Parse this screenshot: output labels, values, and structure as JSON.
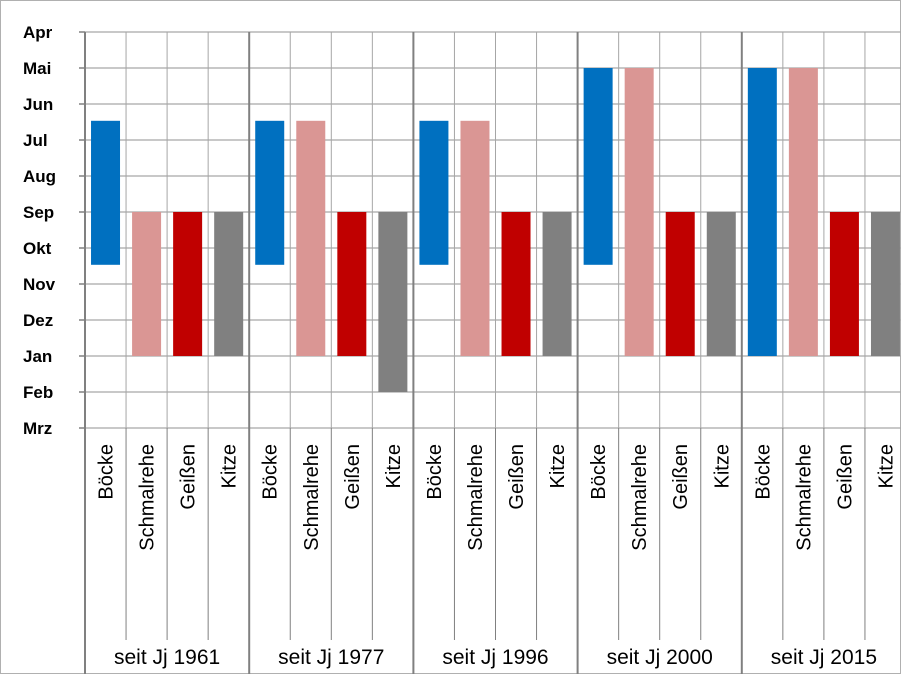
{
  "chart_data": {
    "type": "bar",
    "subtype": "floating-range",
    "title": "",
    "xlabel": "",
    "ylabel": "",
    "y_inverted": true,
    "y_ticks": [
      "Apr",
      "Mai",
      "Jun",
      "Jul",
      "Aug",
      "Sep",
      "Okt",
      "Nov",
      "Dez",
      "Jan",
      "Feb",
      "Mrz"
    ],
    "categories": [
      "Böcke",
      "Schmalrehe",
      "Geißen",
      "Kitze"
    ],
    "colors": {
      "Böcke": "#0070C0",
      "Schmalrehe": "#DA9694",
      "Geißen": "#C00000",
      "Kitze": "#808080"
    },
    "groups": [
      {
        "label": "seit Jj 1961",
        "ranges": [
          [
            "Jun 15",
            "Okt 15"
          ],
          [
            "Sep",
            "Jan"
          ],
          [
            "Sep",
            "Jan"
          ],
          [
            "Sep",
            "Jan"
          ]
        ]
      },
      {
        "label": "seit Jj 1977",
        "ranges": [
          [
            "Jun 15",
            "Okt 15"
          ],
          [
            "Jun 15",
            "Jan"
          ],
          [
            "Sep",
            "Jan"
          ],
          [
            "Sep",
            "Feb"
          ]
        ]
      },
      {
        "label": "seit Jj 1996",
        "ranges": [
          [
            "Jun 15",
            "Okt 15"
          ],
          [
            "Jun 15",
            "Jan"
          ],
          [
            "Sep",
            "Jan"
          ],
          [
            "Sep",
            "Jan"
          ]
        ]
      },
      {
        "label": "seit Jj 2000",
        "ranges": [
          [
            "Mai",
            "Okt 15"
          ],
          [
            "Mai",
            "Jan"
          ],
          [
            "Sep",
            "Jan"
          ],
          [
            "Sep",
            "Jan"
          ]
        ]
      },
      {
        "label": "seit Jj 2015",
        "ranges": [
          [
            "Mai",
            "Jan"
          ],
          [
            "Mai",
            "Jan"
          ],
          [
            "Sep",
            "Jan"
          ],
          [
            "Sep",
            "Jan"
          ]
        ]
      }
    ],
    "grid": true,
    "legend": "none"
  }
}
